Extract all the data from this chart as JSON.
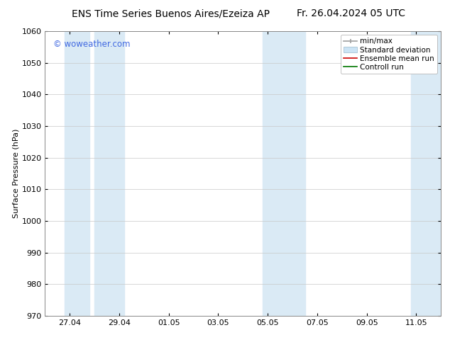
{
  "title_left": "ENS Time Series Buenos Aires/Ezeiza AP",
  "title_right": "Fr. 26.04.2024 05 UTC",
  "ylabel": "Surface Pressure (hPa)",
  "ylim": [
    970,
    1060
  ],
  "yticks": [
    970,
    980,
    990,
    1000,
    1010,
    1020,
    1030,
    1040,
    1050,
    1060
  ],
  "xtick_labels": [
    "27.04",
    "29.04",
    "01.05",
    "03.05",
    "05.05",
    "07.05",
    "09.05",
    "11.05"
  ],
  "xtick_positions": [
    0,
    2,
    4,
    6,
    8,
    10,
    12,
    14
  ],
  "xlim": [
    0,
    15
  ],
  "bg_color": "#ffffff",
  "plot_bg_color": "#ffffff",
  "shaded_bands": [
    {
      "x_start": 0,
      "x_end": 2.0
    },
    {
      "x_start": 2.0,
      "x_end": 3.0
    },
    {
      "x_start": 7.5,
      "x_end": 9.5
    },
    {
      "x_start": 13.5,
      "x_end": 15.0
    }
  ],
  "shade_color": "#daeaf5",
  "watermark": "© woweather.com",
  "watermark_color": "#4169e1",
  "legend_labels": [
    "min/max",
    "Standard deviation",
    "Ensemble mean run",
    "Controll run"
  ],
  "grid_color": "#c8c8c8",
  "title_fontsize": 10,
  "axis_fontsize": 8,
  "tick_fontsize": 8,
  "legend_fontsize": 7.5
}
